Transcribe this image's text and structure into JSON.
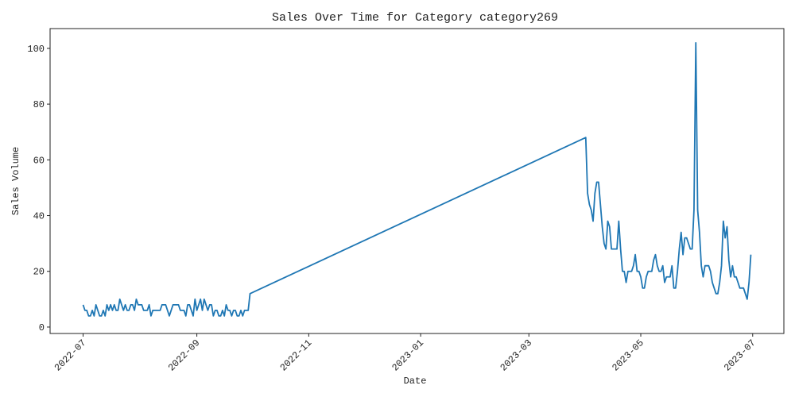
{
  "chart_data": {
    "type": "line",
    "title": "Sales Over Time for Category category269",
    "x_label": "Date",
    "y_label": "Sales Volume",
    "color": "#1f77b4",
    "x": [
      "2022-07-01",
      "2022-07-02",
      "2022-07-03",
      "2022-07-04",
      "2022-07-05",
      "2022-07-06",
      "2022-07-07",
      "2022-07-08",
      "2022-07-09",
      "2022-07-10",
      "2022-07-11",
      "2022-07-12",
      "2022-07-13",
      "2022-07-14",
      "2022-07-15",
      "2022-07-16",
      "2022-07-17",
      "2022-07-18",
      "2022-07-19",
      "2022-07-20",
      "2022-07-21",
      "2022-07-22",
      "2022-07-23",
      "2022-07-24",
      "2022-07-25",
      "2022-07-26",
      "2022-07-27",
      "2022-07-28",
      "2022-07-29",
      "2022-07-30",
      "2022-07-31",
      "2022-08-01",
      "2022-08-02",
      "2022-08-03",
      "2022-08-04",
      "2022-08-05",
      "2022-08-06",
      "2022-08-07",
      "2022-08-08",
      "2022-08-09",
      "2022-08-10",
      "2022-08-11",
      "2022-08-12",
      "2022-08-13",
      "2022-08-14",
      "2022-08-15",
      "2022-08-16",
      "2022-08-17",
      "2022-08-18",
      "2022-08-19",
      "2022-08-20",
      "2022-08-21",
      "2022-08-22",
      "2022-08-23",
      "2022-08-24",
      "2022-08-25",
      "2022-08-26",
      "2022-08-27",
      "2022-08-28",
      "2022-08-29",
      "2022-08-30",
      "2022-08-31",
      "2022-09-01",
      "2022-09-02",
      "2022-09-03",
      "2022-09-04",
      "2022-09-05",
      "2022-09-06",
      "2022-09-07",
      "2022-09-08",
      "2022-09-09",
      "2022-09-10",
      "2022-09-11",
      "2022-09-12",
      "2022-09-13",
      "2022-09-14",
      "2022-09-15",
      "2022-09-16",
      "2022-09-17",
      "2022-09-18",
      "2022-09-19",
      "2022-09-20",
      "2022-09-21",
      "2022-09-22",
      "2022-09-23",
      "2022-09-24",
      "2022-09-25",
      "2022-09-26",
      "2022-09-27",
      "2022-09-28",
      "2022-09-29",
      "2022-09-30",
      "2023-04-01",
      "2023-04-02",
      "2023-04-03",
      "2023-04-04",
      "2023-04-05",
      "2023-04-06",
      "2023-04-07",
      "2023-04-08",
      "2023-04-09",
      "2023-04-10",
      "2023-04-11",
      "2023-04-12",
      "2023-04-13",
      "2023-04-14",
      "2023-04-15",
      "2023-04-16",
      "2023-04-17",
      "2023-04-18",
      "2023-04-19",
      "2023-04-20",
      "2023-04-21",
      "2023-04-22",
      "2023-04-23",
      "2023-04-24",
      "2023-04-25",
      "2023-04-26",
      "2023-04-27",
      "2023-04-28",
      "2023-04-29",
      "2023-04-30",
      "2023-05-01",
      "2023-05-02",
      "2023-05-03",
      "2023-05-04",
      "2023-05-05",
      "2023-05-06",
      "2023-05-07",
      "2023-05-08",
      "2023-05-09",
      "2023-05-10",
      "2023-05-11",
      "2023-05-12",
      "2023-05-13",
      "2023-05-14",
      "2023-05-15",
      "2023-05-16",
      "2023-05-17",
      "2023-05-18",
      "2023-05-19",
      "2023-05-20",
      "2023-05-21",
      "2023-05-22",
      "2023-05-23",
      "2023-05-24",
      "2023-05-25",
      "2023-05-26",
      "2023-05-27",
      "2023-05-28",
      "2023-05-29",
      "2023-05-30",
      "2023-05-31",
      "2023-06-01",
      "2023-06-02",
      "2023-06-03",
      "2023-06-04",
      "2023-06-05",
      "2023-06-06",
      "2023-06-07",
      "2023-06-08",
      "2023-06-09",
      "2023-06-10",
      "2023-06-11",
      "2023-06-12",
      "2023-06-13",
      "2023-06-14",
      "2023-06-15",
      "2023-06-16",
      "2023-06-17",
      "2023-06-18",
      "2023-06-19",
      "2023-06-20",
      "2023-06-21",
      "2023-06-22",
      "2023-06-23",
      "2023-06-24",
      "2023-06-25",
      "2023-06-26",
      "2023-06-27",
      "2023-06-28",
      "2023-06-29",
      "2023-06-30"
    ],
    "values": [
      8,
      6,
      6,
      4,
      4,
      6,
      4,
      8,
      6,
      4,
      4,
      6,
      4,
      8,
      6,
      8,
      6,
      8,
      6,
      6,
      10,
      8,
      6,
      8,
      6,
      6,
      8,
      8,
      6,
      10,
      8,
      8,
      8,
      6,
      6,
      6,
      8,
      4,
      6,
      6,
      6,
      6,
      6,
      8,
      8,
      8,
      6,
      4,
      6,
      8,
      8,
      8,
      8,
      6,
      6,
      6,
      4,
      8,
      8,
      6,
      4,
      10,
      6,
      8,
      10,
      6,
      10,
      8,
      6,
      8,
      8,
      4,
      6,
      6,
      4,
      4,
      6,
      4,
      8,
      6,
      6,
      4,
      6,
      6,
      4,
      4,
      6,
      4,
      6,
      6,
      6,
      12,
      68,
      48,
      44,
      42,
      38,
      48,
      52,
      52,
      44,
      36,
      30,
      28,
      38,
      36,
      28,
      28,
      28,
      28,
      38,
      28,
      20,
      20,
      16,
      20,
      20,
      20,
      22,
      26,
      20,
      20,
      18,
      14,
      14,
      18,
      20,
      20,
      20,
      24,
      26,
      22,
      20,
      20,
      22,
      16,
      18,
      18,
      18,
      22,
      14,
      14,
      20,
      28,
      34,
      26,
      32,
      32,
      30,
      28,
      28,
      42,
      102,
      42,
      34,
      22,
      18,
      22,
      22,
      22,
      20,
      16,
      14,
      12,
      12,
      16,
      22,
      38,
      32,
      36,
      24,
      18,
      22,
      18,
      18,
      16,
      14,
      14,
      14,
      12,
      10,
      16,
      26
    ],
    "xlim": [
      "2022-06-13",
      "2023-07-18"
    ],
    "xticks": [
      {
        "value": "2022-07-01",
        "label": "2022-07"
      },
      {
        "value": "2022-09-01",
        "label": "2022-09"
      },
      {
        "value": "2022-11-01",
        "label": "2022-11"
      },
      {
        "value": "2023-01-01",
        "label": "2023-01"
      },
      {
        "value": "2023-03-01",
        "label": "2023-03"
      },
      {
        "value": "2023-05-01",
        "label": "2023-05"
      },
      {
        "value": "2023-07-01",
        "label": "2023-07"
      }
    ],
    "ylim": [
      -2.3,
      107.1
    ],
    "yticks": [
      0,
      20,
      40,
      60,
      80,
      100
    ]
  }
}
